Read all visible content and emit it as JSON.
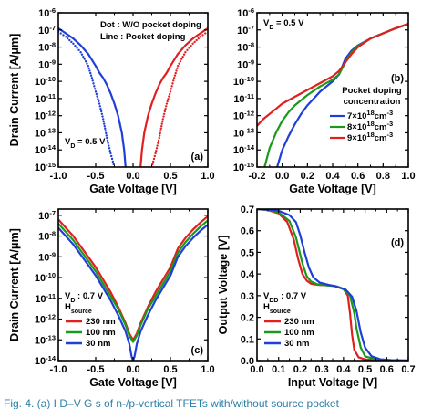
{
  "caption": "Fig. 4.   (a)  I D–V G s of n-/p-vertical TFETs with/without source pocket",
  "colors": {
    "red": "#e02020",
    "blue": "#1f3fd8",
    "green": "#1a9a1a",
    "caption": "#2a7fa8"
  },
  "chart_data": [
    {
      "id": "a",
      "type": "line",
      "panel_label": "(a)",
      "xlabel": "Gate Voltage [V]",
      "ylabel": "Drain Current [A/μm]",
      "xlim": [
        -1.0,
        1.0
      ],
      "ylim_log10": [
        -15,
        -6
      ],
      "log_scale_y": true,
      "x_ticks": [
        "-1.0",
        "-0.5",
        "0.0",
        "0.5",
        "1.0"
      ],
      "y_ticks": [
        "10-15",
        "10-14",
        "10-13",
        "10-12",
        "10-11",
        "10-10",
        "10-9",
        "10-8",
        "10-7",
        "10-6"
      ],
      "annotations": [
        "Dot : W/O pocket doping",
        "Line : Pocket doping",
        "VD = 0.5 V"
      ],
      "series": [
        {
          "style": "line",
          "color": "red",
          "x": [
            0.1,
            0.12,
            0.15,
            0.2,
            0.25,
            0.3,
            0.35,
            0.4,
            0.45,
            0.5,
            0.6,
            0.7,
            0.8,
            0.9,
            1.0
          ],
          "y_log10": [
            -15,
            -14,
            -13,
            -12,
            -11.3,
            -10.7,
            -10.2,
            -9.8,
            -9.5,
            -9.1,
            -8.4,
            -7.9,
            -7.5,
            -7.2,
            -6.9
          ]
        },
        {
          "style": "dot",
          "color": "red",
          "x": [
            0.25,
            0.3,
            0.35,
            0.4,
            0.45,
            0.5,
            0.55,
            0.6,
            0.7,
            0.8,
            0.9,
            1.0
          ],
          "y_log10": [
            -15,
            -14.2,
            -13.3,
            -12.2,
            -11.3,
            -10.6,
            -9.8,
            -9.1,
            -8.3,
            -7.8,
            -7.4,
            -7.1
          ]
        },
        {
          "style": "line",
          "color": "blue",
          "x": [
            -1.0,
            -0.9,
            -0.8,
            -0.7,
            -0.6,
            -0.5,
            -0.45,
            -0.4,
            -0.35,
            -0.3,
            -0.25,
            -0.2,
            -0.15,
            -0.12,
            -0.1
          ],
          "y_log10": [
            -6.9,
            -7.2,
            -7.5,
            -7.9,
            -8.4,
            -9.1,
            -9.5,
            -9.8,
            -10.2,
            -10.7,
            -11.3,
            -12,
            -13,
            -14,
            -15
          ]
        },
        {
          "style": "dot",
          "color": "blue",
          "x": [
            -1.0,
            -0.9,
            -0.8,
            -0.7,
            -0.6,
            -0.55,
            -0.5,
            -0.45,
            -0.4,
            -0.35,
            -0.3,
            -0.25
          ],
          "y_log10": [
            -7.1,
            -7.4,
            -7.8,
            -8.3,
            -9.1,
            -9.8,
            -10.6,
            -11.3,
            -12.2,
            -13.3,
            -14.2,
            -15
          ]
        }
      ]
    },
    {
      "id": "b",
      "type": "line",
      "panel_label": "(b)",
      "xlabel": "Gate Voltage [V]",
      "ylabel": "",
      "xlim": [
        -0.2,
        1.0
      ],
      "ylim_log10": [
        -15,
        -6
      ],
      "log_scale_y": true,
      "x_ticks": [
        "-0.2",
        "0.0",
        "0.2",
        "0.4",
        "0.6",
        "0.8",
        "1.0"
      ],
      "y_ticks": [
        "10-15",
        "10-14",
        "10-13",
        "10-12",
        "10-11",
        "10-10",
        "10-9",
        "10-8",
        "10-7",
        "10-6"
      ],
      "annotations": [
        "VD = 0.5 V"
      ],
      "legend_title": [
        "Pocket doping",
        "concentration"
      ],
      "legend_position": "lower-right",
      "series": [
        {
          "name": "7×1018cm-3",
          "color": "blue",
          "x": [
            -0.04,
            0.0,
            0.05,
            0.1,
            0.15,
            0.2,
            0.25,
            0.3,
            0.35,
            0.4,
            0.45,
            0.5,
            0.55,
            0.6,
            0.7,
            0.8,
            0.9,
            1.0
          ],
          "y_log10": [
            -15,
            -14,
            -13.2,
            -12.5,
            -11.9,
            -11.4,
            -11,
            -10.6,
            -10.3,
            -10,
            -9.6,
            -8.7,
            -8.2,
            -7.9,
            -7.5,
            -7.2,
            -6.9,
            -6.65
          ]
        },
        {
          "name": "8×1018cm-3",
          "color": "green",
          "x": [
            -0.14,
            -0.1,
            -0.05,
            0.0,
            0.05,
            0.1,
            0.2,
            0.3,
            0.4,
            0.45,
            0.5,
            0.55,
            0.6,
            0.7,
            0.8,
            0.9,
            1.0
          ],
          "y_log10": [
            -15,
            -13.9,
            -13,
            -12.3,
            -11.8,
            -11.4,
            -10.8,
            -10.3,
            -9.9,
            -9.6,
            -8.9,
            -8.3,
            -7.95,
            -7.5,
            -7.2,
            -6.9,
            -6.65
          ]
        },
        {
          "name": "9×1018cm-3",
          "color": "red",
          "x": [
            -0.2,
            -0.15,
            -0.1,
            -0.05,
            0.0,
            0.1,
            0.2,
            0.3,
            0.4,
            0.45,
            0.5,
            0.55,
            0.6,
            0.7,
            0.8,
            0.9,
            1.0
          ],
          "y_log10": [
            -12.6,
            -12.2,
            -11.9,
            -11.6,
            -11.3,
            -10.9,
            -10.5,
            -10.1,
            -9.7,
            -9.4,
            -8.9,
            -8.4,
            -8.0,
            -7.5,
            -7.2,
            -6.9,
            -6.65
          ]
        }
      ]
    },
    {
      "id": "c",
      "type": "line",
      "panel_label": "(c)",
      "xlabel": "Gate Voltage [V]",
      "ylabel": "Drain Current [A/μm]",
      "xlim": [
        -1.0,
        1.0
      ],
      "ylim_log10": [
        -14,
        -6.7
      ],
      "log_scale_y": true,
      "x_ticks": [
        "-1.0",
        "-0.5",
        "0.0",
        "0.5",
        "1.0"
      ],
      "y_ticks": [
        "10-14",
        "10-13",
        "10-12",
        "10-11",
        "10-10",
        "10-9",
        "10-8",
        "10-7"
      ],
      "annotations": [
        "VD : 0.7 V",
        "Hsource"
      ],
      "legend_position": "lower-left",
      "series": [
        {
          "name": "230 nm",
          "color": "red",
          "x": [
            -1.0,
            -0.9,
            -0.8,
            -0.7,
            -0.6,
            -0.5,
            -0.4,
            -0.3,
            -0.2,
            -0.1,
            -0.05,
            0.0,
            0.05,
            0.1,
            0.2,
            0.3,
            0.4,
            0.5,
            0.6,
            0.7,
            0.8,
            0.9,
            1.0
          ],
          "y_log10": [
            -7.2,
            -7.6,
            -8.0,
            -8.5,
            -9.0,
            -9.5,
            -10.1,
            -10.7,
            -11.4,
            -12.2,
            -12.7,
            -13.0,
            -12.7,
            -12.2,
            -11.4,
            -10.7,
            -10.1,
            -9.5,
            -8.6,
            -8.1,
            -7.7,
            -7.35,
            -7.05
          ]
        },
        {
          "name": "100 nm",
          "color": "green",
          "x": [
            -1.0,
            -0.9,
            -0.8,
            -0.7,
            -0.6,
            -0.5,
            -0.4,
            -0.3,
            -0.2,
            -0.1,
            -0.05,
            0.0,
            0.05,
            0.1,
            0.2,
            0.3,
            0.4,
            0.5,
            0.6,
            0.7,
            0.8,
            0.9,
            1.0
          ],
          "y_log10": [
            -7.4,
            -7.8,
            -8.2,
            -8.7,
            -9.2,
            -9.7,
            -10.3,
            -10.9,
            -11.5,
            -12.3,
            -12.8,
            -13.1,
            -12.8,
            -12.3,
            -11.5,
            -10.9,
            -10.3,
            -9.7,
            -8.8,
            -8.3,
            -7.9,
            -7.55,
            -7.25
          ]
        },
        {
          "name": "30 nm",
          "color": "blue",
          "x": [
            -1.0,
            -0.9,
            -0.8,
            -0.7,
            -0.6,
            -0.5,
            -0.4,
            -0.3,
            -0.2,
            -0.1,
            -0.05,
            -0.02,
            0.0,
            0.02,
            0.05,
            0.1,
            0.2,
            0.3,
            0.4,
            0.5,
            0.6,
            0.7,
            0.8,
            0.9,
            1.0
          ],
          "y_log10": [
            -7.6,
            -8.0,
            -8.4,
            -8.9,
            -9.4,
            -9.9,
            -10.5,
            -11.1,
            -11.8,
            -12.6,
            -13.2,
            -13.8,
            -14,
            -13.8,
            -13.2,
            -12.6,
            -11.8,
            -11.1,
            -10.5,
            -9.9,
            -9.0,
            -8.5,
            -8.1,
            -7.75,
            -7.45
          ]
        }
      ]
    },
    {
      "id": "d",
      "type": "line",
      "panel_label": "(d)",
      "xlabel": "Input Voltage [V]",
      "ylabel": "Output Voltage [V]",
      "xlim": [
        0.0,
        0.7
      ],
      "ylim": [
        0.0,
        0.7
      ],
      "log_scale_y": false,
      "x_ticks": [
        "0.0",
        "0.1",
        "0.2",
        "0.3",
        "0.4",
        "0.5",
        "0.6",
        "0.7"
      ],
      "y_ticks": [
        "0.0",
        "0.1",
        "0.2",
        "0.3",
        "0.4",
        "0.5",
        "0.6",
        "0.7"
      ],
      "annotations": [
        "VDD : 0.7 V",
        "Hsource"
      ],
      "legend_position": "lower-left",
      "series": [
        {
          "name": "230 nm",
          "color": "red",
          "x": [
            0.0,
            0.05,
            0.1,
            0.14,
            0.17,
            0.19,
            0.21,
            0.23,
            0.25,
            0.28,
            0.32,
            0.36,
            0.4,
            0.42,
            0.43,
            0.44,
            0.45,
            0.47,
            0.5,
            0.6,
            0.7
          ],
          "y_log10": null,
          "y": [
            0.7,
            0.695,
            0.68,
            0.64,
            0.56,
            0.47,
            0.4,
            0.37,
            0.355,
            0.35,
            0.348,
            0.345,
            0.33,
            0.3,
            0.22,
            0.12,
            0.05,
            0.015,
            0.005,
            0.001,
            0.0
          ]
        },
        {
          "name": "100 nm",
          "color": "green",
          "x": [
            0.0,
            0.05,
            0.1,
            0.15,
            0.18,
            0.21,
            0.23,
            0.25,
            0.28,
            0.32,
            0.36,
            0.4,
            0.43,
            0.45,
            0.46,
            0.48,
            0.5,
            0.55,
            0.6,
            0.7
          ],
          "y": [
            0.7,
            0.696,
            0.685,
            0.645,
            0.57,
            0.45,
            0.39,
            0.365,
            0.352,
            0.348,
            0.344,
            0.33,
            0.3,
            0.22,
            0.15,
            0.06,
            0.02,
            0.005,
            0.001,
            0.0
          ]
        },
        {
          "name": "30 nm",
          "color": "blue",
          "x": [
            0.0,
            0.05,
            0.1,
            0.15,
            0.18,
            0.2,
            0.22,
            0.24,
            0.26,
            0.29,
            0.33,
            0.37,
            0.41,
            0.44,
            0.46,
            0.48,
            0.5,
            0.53,
            0.57,
            0.62,
            0.7
          ],
          "y": [
            0.7,
            0.698,
            0.692,
            0.672,
            0.64,
            0.58,
            0.5,
            0.43,
            0.385,
            0.36,
            0.35,
            0.342,
            0.328,
            0.295,
            0.23,
            0.13,
            0.06,
            0.02,
            0.006,
            0.002,
            0.0
          ]
        }
      ]
    }
  ]
}
